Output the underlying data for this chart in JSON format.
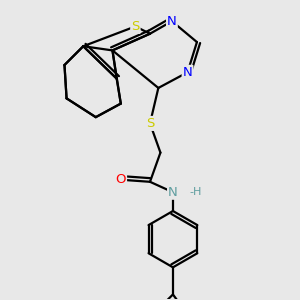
{
  "bg_color": "#e8e8e8",
  "atom_colors": {
    "S": "#cccc00",
    "N": "#0000ff",
    "O": "#ff0000",
    "C": "#000000",
    "H": "#5f9ea0"
  },
  "line_color": "#000000",
  "line_width": 1.6,
  "font_size_atom": 9.5,
  "font_size_small": 8
}
